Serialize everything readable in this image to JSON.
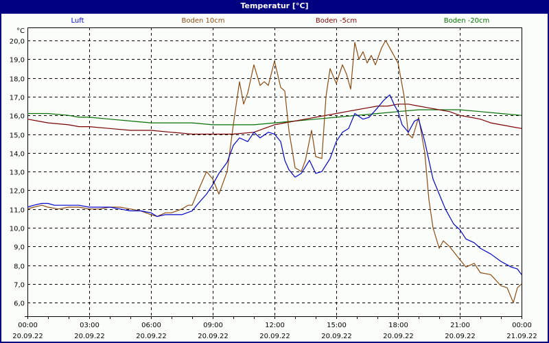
{
  "window": {
    "title": "Temperatur [°C]"
  },
  "colors": {
    "frame": "#000080",
    "luft": "#0000cc",
    "boden10": "#8b4a10",
    "bodenm5": "#7a0000",
    "bodenm20": "#007000",
    "grid": "#000000"
  },
  "legend": [
    {
      "label": "Luft",
      "color": "#0000cc"
    },
    {
      "label": "Boden 10cm",
      "color": "#8b4a10"
    },
    {
      "label": "Boden -5cm",
      "color": "#7a0000"
    },
    {
      "label": "Boden -20cm",
      "color": "#007000"
    }
  ],
  "chart_data": {
    "type": "line",
    "title": "Temperatur [°C]",
    "xlabel": "",
    "ylabel": "°C",
    "ylim": [
      5.3,
      20.7
    ],
    "xlim": [
      0,
      24
    ],
    "grid": true,
    "legend_position": "top",
    "y_ticks": [
      "6,0",
      "7,0",
      "8,0",
      "9,0",
      "10,0",
      "11,0",
      "12,0",
      "13,0",
      "14,0",
      "15,0",
      "16,0",
      "17,0",
      "18,0",
      "19,0",
      "20,0"
    ],
    "x_ticks": [
      {
        "time": "00:00",
        "date": "20.09.22"
      },
      {
        "time": "03:00",
        "date": "20.09.22"
      },
      {
        "time": "06:00",
        "date": "20.09.22"
      },
      {
        "time": "09:00",
        "date": "20.09.22"
      },
      {
        "time": "12:00",
        "date": "20.09.22"
      },
      {
        "time": "15:00",
        "date": "20.09.22"
      },
      {
        "time": "18:00",
        "date": "20.09.22"
      },
      {
        "time": "21:00",
        "date": "20.09.22"
      },
      {
        "time": "00:00",
        "date": "21.09.22"
      }
    ],
    "series": [
      {
        "name": "Luft",
        "color": "#0000cc",
        "x": [
          0,
          0.3,
          0.7,
          1.0,
          1.3,
          1.7,
          2.0,
          2.5,
          3.0,
          3.5,
          4.0,
          4.5,
          5.0,
          5.5,
          6.0,
          6.3,
          6.7,
          7.0,
          7.5,
          8.0,
          8.3,
          8.7,
          9.0,
          9.3,
          9.7,
          10.0,
          10.3,
          10.7,
          11.0,
          11.3,
          11.7,
          12.0,
          12.3,
          12.5,
          12.7,
          13.0,
          13.3,
          13.7,
          14.0,
          14.3,
          14.7,
          15.0,
          15.3,
          15.6,
          15.9,
          16.3,
          16.6,
          17.0,
          17.3,
          17.6,
          17.8,
          18.0,
          18.2,
          18.5,
          18.8,
          19.0,
          19.3,
          19.7,
          20.0,
          20.3,
          20.7,
          21.0,
          21.3,
          21.7,
          22.0,
          22.5,
          23.0,
          23.5,
          23.8,
          24.0
        ],
        "values": [
          11.1,
          11.2,
          11.3,
          11.3,
          11.2,
          11.2,
          11.2,
          11.2,
          11.1,
          11.1,
          11.1,
          11.0,
          10.9,
          10.9,
          10.8,
          10.6,
          10.7,
          10.7,
          10.7,
          10.9,
          11.3,
          11.8,
          12.3,
          12.9,
          13.5,
          14.4,
          14.8,
          14.6,
          15.1,
          14.8,
          15.1,
          15.0,
          14.6,
          13.6,
          13.1,
          12.7,
          12.9,
          13.6,
          12.9,
          13.0,
          13.7,
          14.6,
          15.1,
          15.3,
          16.1,
          15.8,
          15.9,
          16.4,
          16.8,
          17.1,
          16.6,
          16.2,
          15.5,
          15.1,
          15.7,
          15.8,
          14.6,
          12.6,
          11.8,
          11.0,
          10.2,
          9.9,
          9.4,
          9.2,
          8.9,
          8.6,
          8.2,
          7.9,
          7.8,
          7.5
        ]
      },
      {
        "name": "Boden 10cm",
        "color": "#8b4a10",
        "x": [
          0,
          0.3,
          0.7,
          1.0,
          1.5,
          2.0,
          2.5,
          3.0,
          3.5,
          4.0,
          4.5,
          5.0,
          5.5,
          6.0,
          6.3,
          6.7,
          7.0,
          7.5,
          7.8,
          8.0,
          8.3,
          8.7,
          9.0,
          9.3,
          9.7,
          10.0,
          10.3,
          10.5,
          10.7,
          11.0,
          11.3,
          11.5,
          11.7,
          12.0,
          12.3,
          12.5,
          12.7,
          13.0,
          13.3,
          13.5,
          13.8,
          14.0,
          14.3,
          14.5,
          14.7,
          15.0,
          15.3,
          15.5,
          15.7,
          15.9,
          16.1,
          16.3,
          16.5,
          16.7,
          16.9,
          17.2,
          17.4,
          17.7,
          18.0,
          18.3,
          18.5,
          18.7,
          19.0,
          19.3,
          19.5,
          19.7,
          20.0,
          20.2,
          20.5,
          21.0,
          21.3,
          21.7,
          22.0,
          22.5,
          23.0,
          23.3,
          23.6,
          23.8,
          24.0
        ],
        "values": [
          11.0,
          11.1,
          11.2,
          11.1,
          11.0,
          11.1,
          11.1,
          11.0,
          11.0,
          11.1,
          11.1,
          11.0,
          10.9,
          10.7,
          10.6,
          10.8,
          10.8,
          11.0,
          11.2,
          11.2,
          12.0,
          13.0,
          12.6,
          11.8,
          13.0,
          15.5,
          17.8,
          16.6,
          17.2,
          18.7,
          17.6,
          17.8,
          17.6,
          18.9,
          17.5,
          17.3,
          15.2,
          13.2,
          13.0,
          13.6,
          15.2,
          13.8,
          13.7,
          17.0,
          18.5,
          17.7,
          18.7,
          18.2,
          17.4,
          19.9,
          19.0,
          19.4,
          18.8,
          19.2,
          18.7,
          19.6,
          20.0,
          19.4,
          18.8,
          17.0,
          15.0,
          14.8,
          15.9,
          14.0,
          11.5,
          10.0,
          8.9,
          9.3,
          9.0,
          8.3,
          7.9,
          8.1,
          7.6,
          7.5,
          6.9,
          6.8,
          6.0,
          6.8,
          7.0
        ]
      },
      {
        "name": "Boden -5cm",
        "color": "#7a0000",
        "x": [
          0,
          0.5,
          1.0,
          2.0,
          2.5,
          3.0,
          4.0,
          5.0,
          6.0,
          7.0,
          8.0,
          9.0,
          10.0,
          11.0,
          11.5,
          12.0,
          12.5,
          13.0,
          13.5,
          14.0,
          14.5,
          15.0,
          15.5,
          16.0,
          16.5,
          17.0,
          17.5,
          18.0,
          18.5,
          19.0,
          19.5,
          20.0,
          20.5,
          21.0,
          21.5,
          22.0,
          22.5,
          23.0,
          23.5,
          24.0
        ],
        "values": [
          15.8,
          15.7,
          15.6,
          15.5,
          15.4,
          15.4,
          15.3,
          15.2,
          15.2,
          15.1,
          15.0,
          15.0,
          15.0,
          15.1,
          15.3,
          15.5,
          15.6,
          15.7,
          15.8,
          15.9,
          16.0,
          16.1,
          16.2,
          16.3,
          16.4,
          16.5,
          16.5,
          16.6,
          16.6,
          16.5,
          16.4,
          16.3,
          16.2,
          16.0,
          15.9,
          15.8,
          15.6,
          15.5,
          15.4,
          15.3
        ]
      },
      {
        "name": "Boden -20cm",
        "color": "#007000",
        "x": [
          0,
          1.0,
          2.0,
          2.5,
          3.0,
          4.0,
          5.0,
          6.0,
          7.0,
          8.0,
          9.0,
          10.0,
          11.0,
          12.0,
          13.0,
          14.0,
          15.0,
          16.0,
          17.0,
          18.0,
          19.0,
          20.0,
          21.0,
          22.0,
          23.0,
          24.0
        ],
        "values": [
          16.1,
          16.1,
          16.0,
          15.9,
          15.9,
          15.8,
          15.7,
          15.6,
          15.6,
          15.6,
          15.5,
          15.5,
          15.5,
          15.6,
          15.7,
          15.8,
          15.9,
          16.0,
          16.1,
          16.2,
          16.3,
          16.3,
          16.3,
          16.2,
          16.1,
          16.0
        ]
      }
    ]
  }
}
